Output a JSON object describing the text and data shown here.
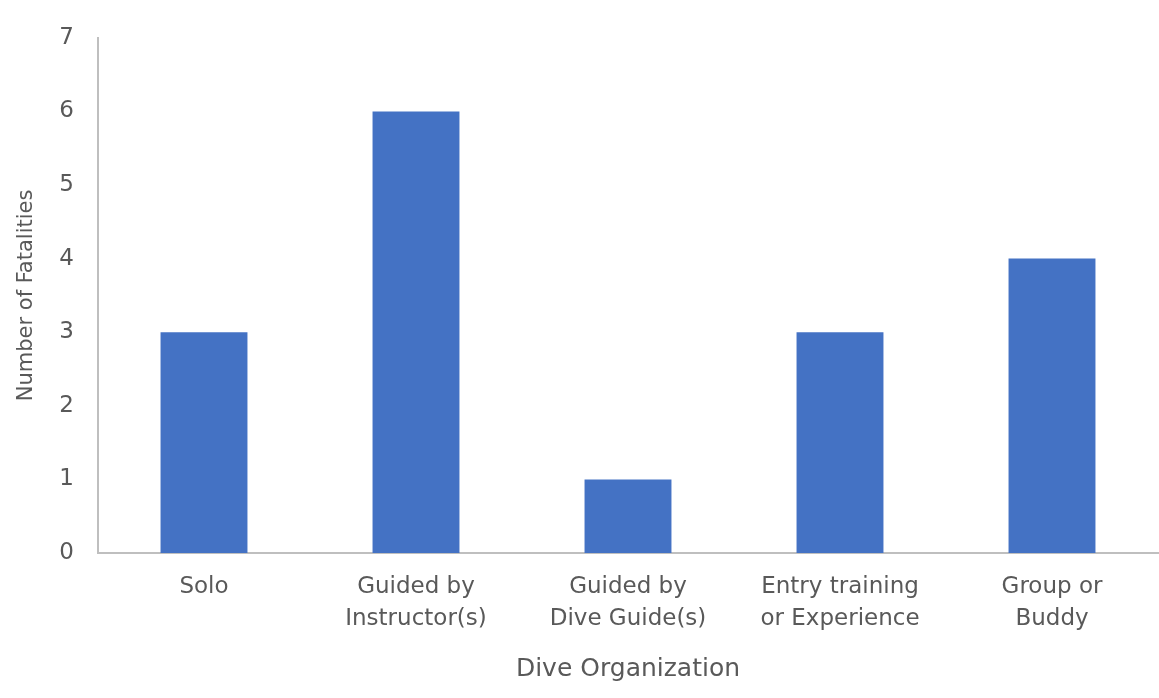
{
  "chart_data": {
    "type": "bar",
    "xlabel": "Dive Organization",
    "ylabel": "Number of Fatalities",
    "categories": [
      "Solo",
      "Guided by Instructor(s)",
      "Guided by Dive Guide(s)",
      "Entry training or Experience",
      "Group or Buddy"
    ],
    "values": [
      3,
      6,
      1,
      3,
      4
    ],
    "color": "#4472c4",
    "ylim": [
      0,
      7
    ],
    "yticks": [
      0,
      1,
      2,
      3,
      4,
      5,
      6,
      7
    ],
    "grid": false,
    "legend": false
  }
}
